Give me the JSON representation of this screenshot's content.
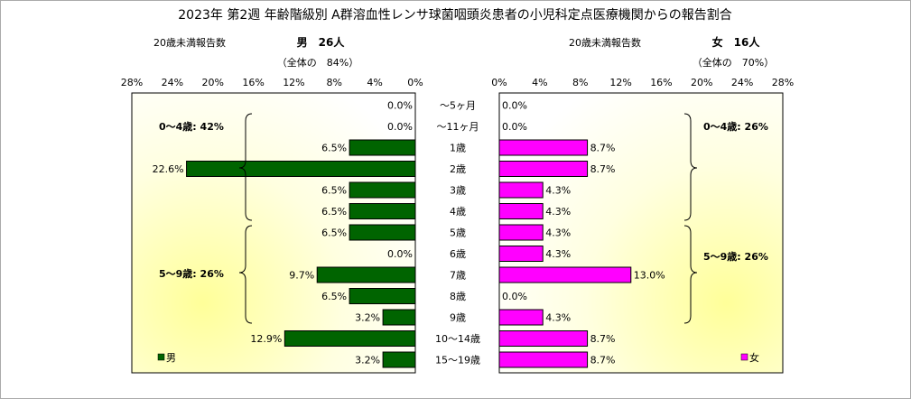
{
  "chart_data": {
    "type": "bar",
    "title": "2023年 第2週  年齢階級別 A群溶血性レンサ球菌咽頭炎患者の小児科定点医療機関からの報告割合",
    "categories": [
      "～5ヶ月",
      "～11ヶ月",
      "1歳",
      "2歳",
      "3歳",
      "4歳",
      "5歳",
      "6歳",
      "7歳",
      "8歳",
      "9歳",
      "10～14歳",
      "15～19歳"
    ],
    "xlim": [
      0,
      28
    ],
    "ticks": [
      "0%",
      "4%",
      "8%",
      "12%",
      "16%",
      "20%",
      "24%",
      "28%"
    ],
    "series": [
      {
        "name": "男",
        "side": "left",
        "header_label": "20歳未満報告数",
        "header_count": "男　26人",
        "header_share": "（全体の　84%）",
        "values": [
          0.0,
          0.0,
          6.5,
          22.6,
          6.5,
          6.5,
          6.5,
          0.0,
          9.7,
          6.5,
          3.2,
          12.9,
          3.2
        ],
        "labels": [
          "0.0%",
          "0.0%",
          "6.5%",
          "22.6%",
          "6.5%",
          "6.5%",
          "6.5%",
          "0.0%",
          "9.7%",
          "6.5%",
          "3.2%",
          "12.9%",
          "3.2%"
        ],
        "color": "#006400",
        "group_labels": [
          "0～4歳: 42%",
          "5～9歳: 26%"
        ]
      },
      {
        "name": "女",
        "side": "right",
        "header_label": "20歳未満報告数",
        "header_count": "女　16人",
        "header_share": "（全体の　70%）",
        "values": [
          0.0,
          0.0,
          8.7,
          8.7,
          4.3,
          4.3,
          4.3,
          4.3,
          13.0,
          0.0,
          4.3,
          8.7,
          8.7
        ],
        "labels": [
          "0.0%",
          "0.0%",
          "8.7%",
          "8.7%",
          "4.3%",
          "4.3%",
          "4.3%",
          "4.3%",
          "13.0%",
          "0.0%",
          "4.3%",
          "8.7%",
          "8.7%"
        ],
        "color": "#ff00ff",
        "group_labels": [
          "0～4歳: 26%",
          "5～9歳: 26%"
        ]
      }
    ],
    "grid": false,
    "legend": "bottom-outer-corners"
  }
}
